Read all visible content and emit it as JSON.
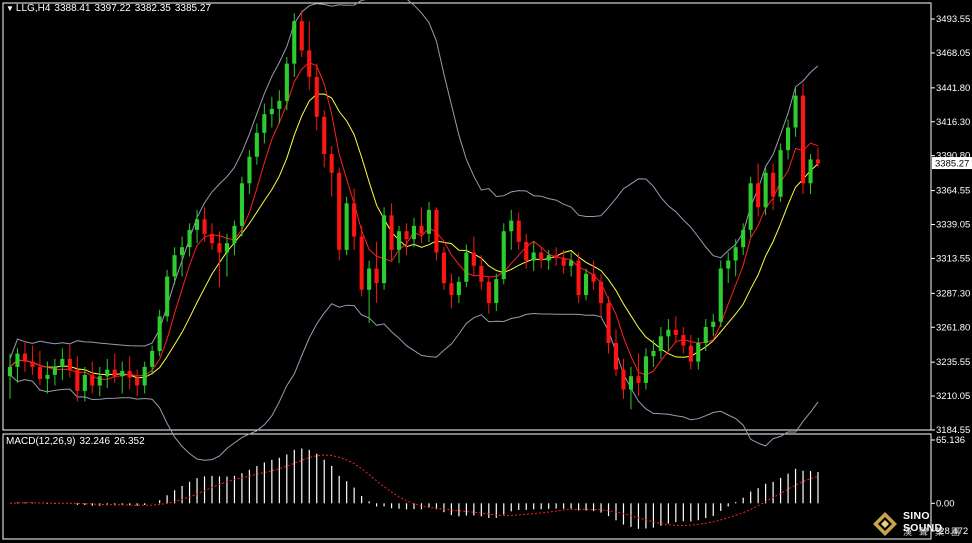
{
  "header": {
    "symbol": "LLG,H4",
    "open": "3388.41",
    "high": "3397.22",
    "low": "3382.35",
    "close": "3385.27"
  },
  "macd_header": {
    "label": "MACD(12,26,9)",
    "macd": "32.246",
    "signal": "26.352"
  },
  "logo": {
    "brand": "SINO SOUND",
    "sub": "漢聲集團"
  },
  "colors": {
    "background": "#000000",
    "up_candle": "#2fcc2f",
    "down_candle": "#ff1414",
    "boll": "#9a9ab4",
    "ma_red": "#ff2020",
    "ma_yellow": "#ffff40",
    "macd_hist": "#ffffff",
    "macd_signal": "#ff2020",
    "current_price_box": "#ffffff"
  },
  "chart_data": {
    "type": "candlestick",
    "price_axis": {
      "ticks": [
        "3493.55",
        "3468.05",
        "3441.80",
        "3416.30",
        "3390.80",
        "3364.55",
        "3339.05",
        "3313.55",
        "3287.30",
        "3261.80",
        "3235.55",
        "3210.05",
        "3184.55"
      ],
      "range": [
        3184.55,
        3505.6
      ],
      "current_price": "3385.27"
    },
    "macd_axis": {
      "ticks": [
        "65.136",
        "0.00",
        "-28.472"
      ],
      "range": [
        -28.472,
        65.136
      ]
    },
    "candles": [
      [
        3225,
        3242,
        3208,
        3232
      ],
      [
        3232,
        3246,
        3220,
        3242
      ],
      [
        3242,
        3250,
        3228,
        3236
      ],
      [
        3236,
        3248,
        3226,
        3232
      ],
      [
        3232,
        3244,
        3218,
        3223
      ],
      [
        3223,
        3236,
        3212,
        3226
      ],
      [
        3226,
        3238,
        3218,
        3232
      ],
      [
        3232,
        3246,
        3222,
        3238
      ],
      [
        3238,
        3250,
        3224,
        3230
      ],
      [
        3230,
        3240,
        3206,
        3214
      ],
      [
        3214,
        3232,
        3206,
        3226
      ],
      [
        3226,
        3236,
        3212,
        3218
      ],
      [
        3218,
        3232,
        3210,
        3225
      ],
      [
        3225,
        3238,
        3216,
        3230
      ],
      [
        3230,
        3242,
        3220,
        3225
      ],
      [
        3225,
        3236,
        3212,
        3229
      ],
      [
        3229,
        3240,
        3215,
        3224
      ],
      [
        3224,
        3230,
        3210,
        3218
      ],
      [
        3218,
        3236,
        3212,
        3232
      ],
      [
        3232,
        3248,
        3226,
        3244
      ],
      [
        3244,
        3275,
        3240,
        3270
      ],
      [
        3270,
        3305,
        3266,
        3300
      ],
      [
        3300,
        3322,
        3294,
        3316
      ],
      [
        3316,
        3330,
        3300,
        3322
      ],
      [
        3322,
        3340,
        3315,
        3335
      ],
      [
        3335,
        3350,
        3325,
        3343
      ],
      [
        3343,
        3352,
        3326,
        3332
      ],
      [
        3332,
        3340,
        3320,
        3325
      ],
      [
        3325,
        3334,
        3292,
        3318
      ],
      [
        3318,
        3332,
        3300,
        3325
      ],
      [
        3325,
        3342,
        3316,
        3338
      ],
      [
        3338,
        3375,
        3330,
        3370
      ],
      [
        3370,
        3395,
        3362,
        3390
      ],
      [
        3390,
        3415,
        3384,
        3408
      ],
      [
        3408,
        3430,
        3400,
        3422
      ],
      [
        3422,
        3435,
        3412,
        3426
      ],
      [
        3426,
        3440,
        3415,
        3432
      ],
      [
        3432,
        3465,
        3425,
        3460
      ],
      [
        3460,
        3498,
        3450,
        3492
      ],
      [
        3492,
        3500,
        3465,
        3470
      ],
      [
        3470,
        3492,
        3440,
        3450
      ],
      [
        3450,
        3460,
        3410,
        3420
      ],
      [
        3420,
        3425,
        3382,
        3392
      ],
      [
        3392,
        3398,
        3360,
        3378
      ],
      [
        3378,
        3382,
        3312,
        3320
      ],
      [
        3320,
        3360,
        3316,
        3355
      ],
      [
        3355,
        3366,
        3320,
        3330
      ],
      [
        3330,
        3338,
        3285,
        3290
      ],
      [
        3290,
        3312,
        3265,
        3306
      ],
      [
        3306,
        3326,
        3280,
        3295
      ],
      [
        3295,
        3352,
        3290,
        3346
      ],
      [
        3346,
        3355,
        3312,
        3320
      ],
      [
        3320,
        3338,
        3310,
        3334
      ],
      [
        3334,
        3340,
        3316,
        3328
      ],
      [
        3328,
        3344,
        3322,
        3338
      ],
      [
        3338,
        3352,
        3325,
        3332
      ],
      [
        3332,
        3356,
        3326,
        3350
      ],
      [
        3350,
        3352,
        3312,
        3318
      ],
      [
        3318,
        3322,
        3290,
        3295
      ],
      [
        3295,
        3302,
        3276,
        3286
      ],
      [
        3286,
        3300,
        3280,
        3296
      ],
      [
        3296,
        3324,
        3292,
        3318
      ],
      [
        3318,
        3330,
        3300,
        3308
      ],
      [
        3308,
        3316,
        3290,
        3296
      ],
      [
        3296,
        3300,
        3272,
        3280
      ],
      [
        3280,
        3302,
        3274,
        3298
      ],
      [
        3298,
        3340,
        3294,
        3334
      ],
      [
        3334,
        3350,
        3320,
        3342
      ],
      [
        3342,
        3348,
        3320,
        3326
      ],
      [
        3326,
        3332,
        3306,
        3312
      ],
      [
        3312,
        3326,
        3304,
        3318
      ],
      [
        3318,
        3322,
        3306,
        3312
      ],
      [
        3312,
        3320,
        3305,
        3316
      ],
      [
        3316,
        3322,
        3308,
        3314
      ],
      [
        3314,
        3320,
        3302,
        3308
      ],
      [
        3308,
        3318,
        3300,
        3312
      ],
      [
        3312,
        3318,
        3280,
        3286
      ],
      [
        3286,
        3306,
        3282,
        3302
      ],
      [
        3302,
        3312,
        3290,
        3296
      ],
      [
        3296,
        3302,
        3270,
        3280
      ],
      [
        3280,
        3285,
        3242,
        3250
      ],
      [
        3250,
        3260,
        3225,
        3230
      ],
      [
        3230,
        3238,
        3208,
        3215
      ],
      [
        3215,
        3232,
        3200,
        3225
      ],
      [
        3225,
        3242,
        3210,
        3220
      ],
      [
        3220,
        3246,
        3215,
        3240
      ],
      [
        3240,
        3252,
        3232,
        3244
      ],
      [
        3244,
        3262,
        3238,
        3255
      ],
      [
        3255,
        3268,
        3244,
        3260
      ],
      [
        3260,
        3270,
        3250,
        3256
      ],
      [
        3256,
        3262,
        3242,
        3248
      ],
      [
        3248,
        3256,
        3230,
        3236
      ],
      [
        3236,
        3254,
        3230,
        3250
      ],
      [
        3250,
        3268,
        3244,
        3262
      ],
      [
        3262,
        3272,
        3255,
        3266
      ],
      [
        3266,
        3312,
        3262,
        3306
      ],
      [
        3306,
        3318,
        3295,
        3312
      ],
      [
        3312,
        3328,
        3300,
        3322
      ],
      [
        3322,
        3340,
        3316,
        3335
      ],
      [
        3335,
        3375,
        3330,
        3370
      ],
      [
        3370,
        3385,
        3345,
        3352
      ],
      [
        3352,
        3382,
        3346,
        3378
      ],
      [
        3378,
        3385,
        3350,
        3360
      ],
      [
        3360,
        3400,
        3356,
        3395
      ],
      [
        3395,
        3418,
        3388,
        3412
      ],
      [
        3412,
        3442,
        3405,
        3436
      ],
      [
        3436,
        3445,
        3362,
        3370
      ],
      [
        3370,
        3392,
        3362,
        3388
      ],
      [
        3388,
        3397,
        3382,
        3385
      ]
    ],
    "macd_histogram_count": 118,
    "macd_visible_values": {
      "last_macd": 32.246,
      "last_signal": 26.352
    }
  }
}
